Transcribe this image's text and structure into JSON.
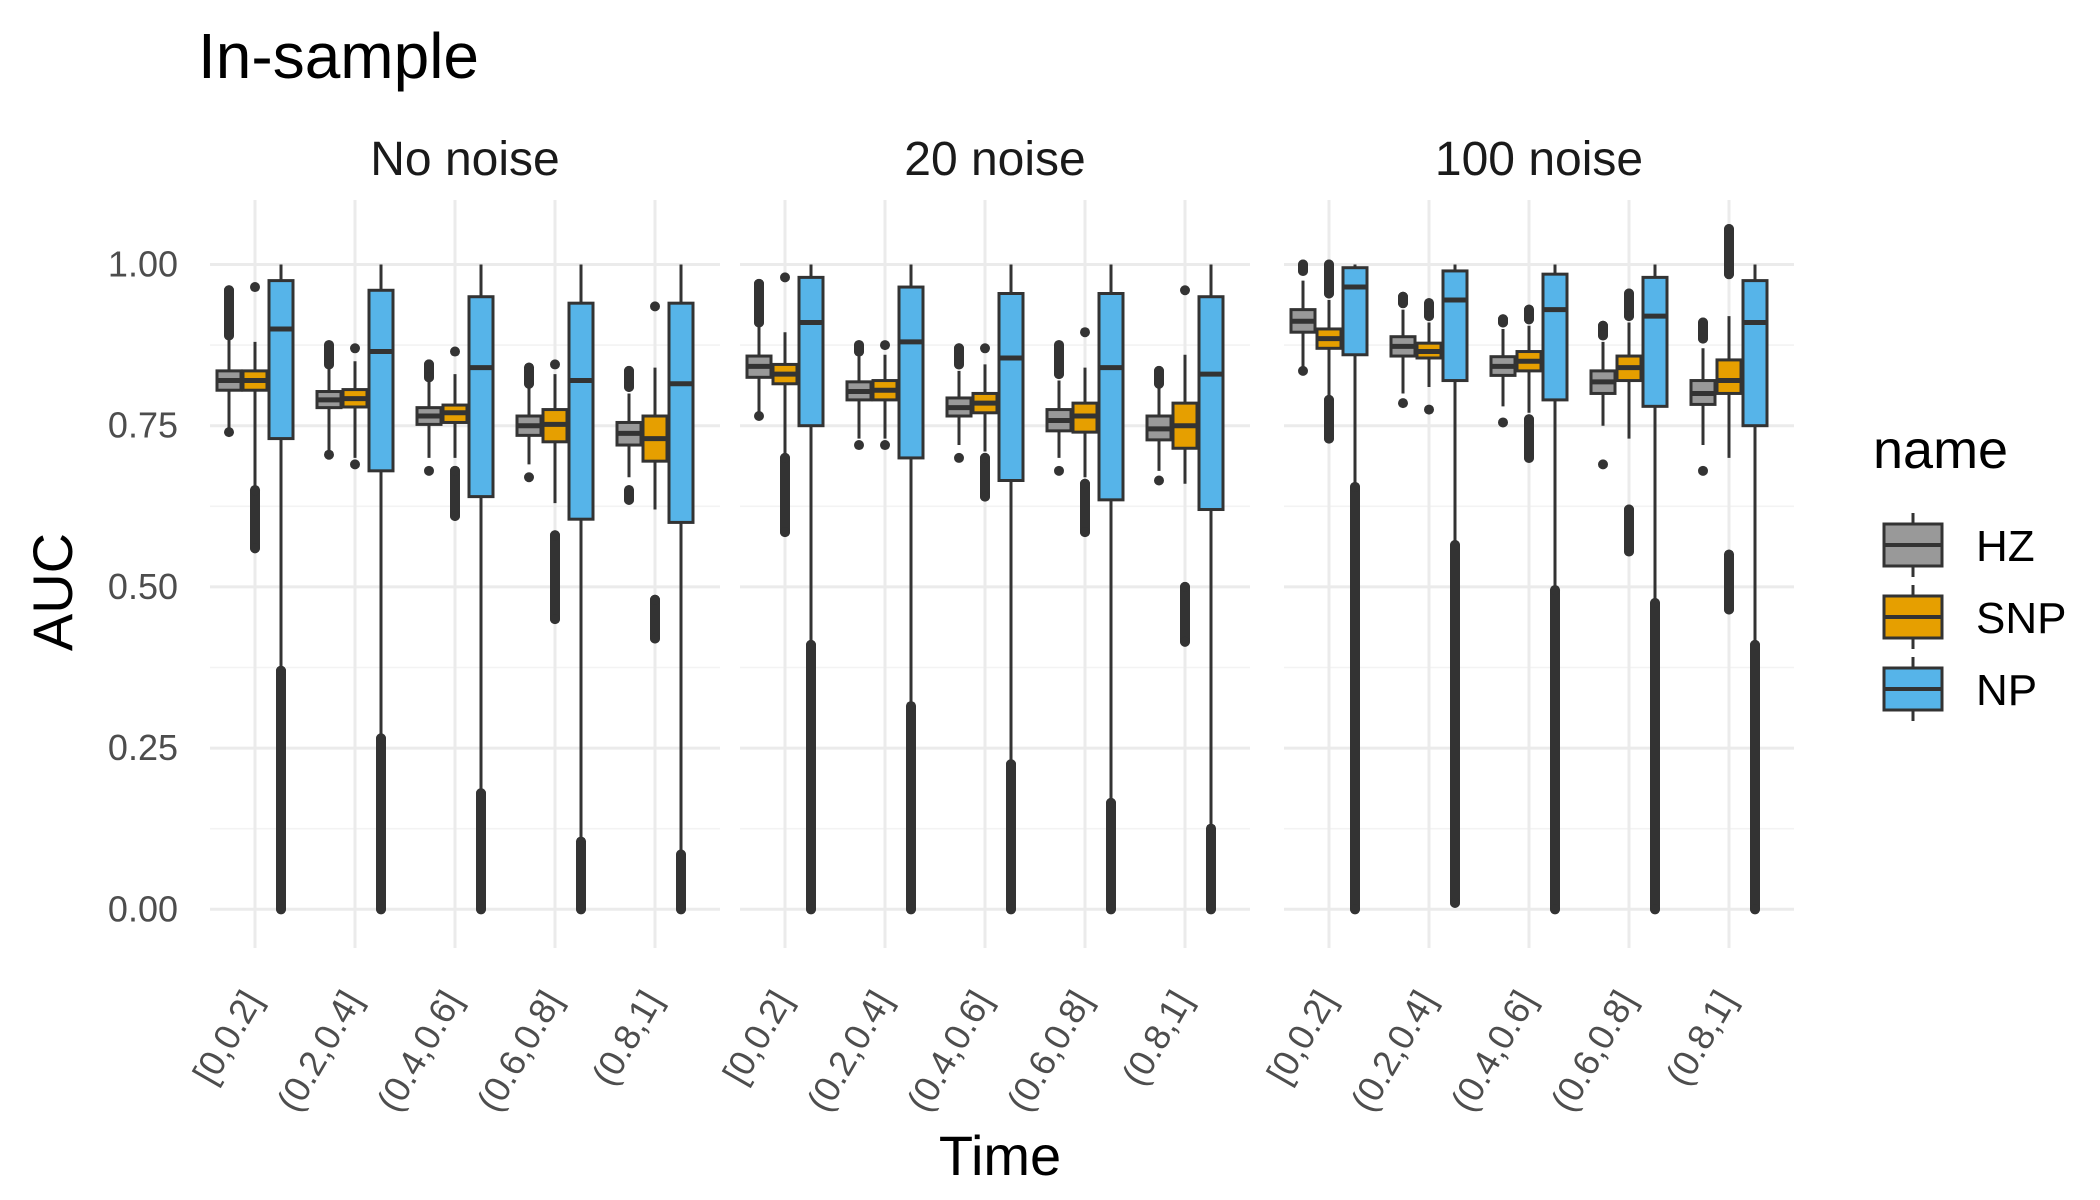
{
  "chart_data": {
    "type": "boxplot",
    "title": "In-sample",
    "xlabel": "Time",
    "ylabel": "AUC",
    "ylim": [
      -0.06,
      1.1
    ],
    "yticks": [
      "0.00",
      "0.25",
      "0.50",
      "0.75",
      "1.00"
    ],
    "ytick_values": [
      0,
      0.25,
      0.5,
      0.75,
      1.0
    ],
    "categories": [
      "[0,0.2]",
      "(0.2,0.4]",
      "(0.4,0.6]",
      "(0.6,0.8]",
      "(0.8,1]"
    ],
    "legend": {
      "title": "name",
      "position": "right",
      "entries": [
        {
          "label": "HZ",
          "color": "#999999"
        },
        {
          "label": "SNP",
          "color": "#E69F00"
        },
        {
          "label": "NP",
          "color": "#56B4E9"
        }
      ]
    },
    "grid": true,
    "panels": [
      {
        "label": "No noise",
        "series": {
          "HZ": [
            {
              "lo": 0.74,
              "q1": 0.805,
              "med": 0.82,
              "q3": 0.835,
              "hi": 0.885,
              "out_low": [
                0.74
              ],
              "out_high": [
                0.89,
                0.96
              ]
            },
            {
              "lo": 0.71,
              "q1": 0.778,
              "med": 0.79,
              "q3": 0.803,
              "hi": 0.84,
              "out_low": [
                0.705
              ],
              "out_high": [
                0.845,
                0.875
              ]
            },
            {
              "lo": 0.7,
              "q1": 0.752,
              "med": 0.765,
              "q3": 0.778,
              "hi": 0.82,
              "out_low": [
                0.68
              ],
              "out_high": [
                0.825,
                0.845
              ]
            },
            {
              "lo": 0.69,
              "q1": 0.735,
              "med": 0.75,
              "q3": 0.765,
              "hi": 0.81,
              "out_low": [
                0.67
              ],
              "out_high": [
                0.815,
                0.84
              ]
            },
            {
              "lo": 0.67,
              "q1": 0.72,
              "med": 0.738,
              "q3": 0.755,
              "hi": 0.8,
              "out_low": [
                0.65,
                0.635
              ],
              "out_high": [
                0.81,
                0.835
              ]
            }
          ],
          "SNP": [
            {
              "lo": 0.65,
              "q1": 0.805,
              "med": 0.82,
              "q3": 0.835,
              "hi": 0.88,
              "out_low": [
                0.56,
                0.65
              ],
              "out_high": [
                0.965
              ]
            },
            {
              "lo": 0.7,
              "q1": 0.779,
              "med": 0.792,
              "q3": 0.806,
              "hi": 0.85,
              "out_low": [
                0.69
              ],
              "out_high": [
                0.87
              ]
            },
            {
              "lo": 0.7,
              "q1": 0.755,
              "med": 0.77,
              "q3": 0.782,
              "hi": 0.83,
              "out_low": [
                0.61,
                0.68
              ],
              "out_high": [
                0.865
              ]
            },
            {
              "lo": 0.63,
              "q1": 0.725,
              "med": 0.752,
              "q3": 0.775,
              "hi": 0.83,
              "out_low": [
                0.45,
                0.58
              ],
              "out_high": [
                0.845
              ]
            },
            {
              "lo": 0.62,
              "q1": 0.695,
              "med": 0.73,
              "q3": 0.765,
              "hi": 0.84,
              "out_low": [
                0.42,
                0.48
              ],
              "out_high": [
                0.935
              ]
            }
          ],
          "NP": [
            {
              "lo": 0.37,
              "q1": 0.73,
              "med": 0.9,
              "q3": 0.975,
              "hi": 1.0,
              "out_low": [
                0.0,
                0.37
              ],
              "out_high": []
            },
            {
              "lo": 0.265,
              "q1": 0.68,
              "med": 0.865,
              "q3": 0.96,
              "hi": 1.0,
              "out_low": [
                0.0,
                0.265
              ],
              "out_high": []
            },
            {
              "lo": 0.18,
              "q1": 0.64,
              "med": 0.84,
              "q3": 0.95,
              "hi": 1.0,
              "out_low": [
                0.0,
                0.18
              ],
              "out_high": []
            },
            {
              "lo": 0.105,
              "q1": 0.605,
              "med": 0.82,
              "q3": 0.94,
              "hi": 1.0,
              "out_low": [
                0.0,
                0.105
              ],
              "out_high": []
            },
            {
              "lo": 0.085,
              "q1": 0.6,
              "med": 0.815,
              "q3": 0.94,
              "hi": 1.0,
              "out_low": [
                0.0,
                0.085
              ],
              "out_high": []
            }
          ]
        }
      },
      {
        "label": "20 noise",
        "series": {
          "HZ": [
            {
              "lo": 0.77,
              "q1": 0.825,
              "med": 0.842,
              "q3": 0.858,
              "hi": 0.905,
              "out_low": [
                0.765
              ],
              "out_high": [
                0.91,
                0.97
              ]
            },
            {
              "lo": 0.73,
              "q1": 0.79,
              "med": 0.803,
              "q3": 0.818,
              "hi": 0.86,
              "out_low": [
                0.72
              ],
              "out_high": [
                0.865,
                0.875
              ]
            },
            {
              "lo": 0.72,
              "q1": 0.765,
              "med": 0.778,
              "q3": 0.793,
              "hi": 0.835,
              "out_low": [
                0.7
              ],
              "out_high": [
                0.845,
                0.87
              ]
            },
            {
              "lo": 0.7,
              "q1": 0.742,
              "med": 0.758,
              "q3": 0.775,
              "hi": 0.82,
              "out_low": [
                0.68
              ],
              "out_high": [
                0.83,
                0.875
              ]
            },
            {
              "lo": 0.68,
              "q1": 0.728,
              "med": 0.745,
              "q3": 0.765,
              "hi": 0.81,
              "out_low": [
                0.665
              ],
              "out_high": [
                0.815,
                0.835
              ]
            }
          ],
          "SNP": [
            {
              "lo": 0.7,
              "q1": 0.815,
              "med": 0.83,
              "q3": 0.845,
              "hi": 0.895,
              "out_low": [
                0.585,
                0.7
              ],
              "out_high": [
                0.98
              ]
            },
            {
              "lo": 0.73,
              "q1": 0.79,
              "med": 0.805,
              "q3": 0.82,
              "hi": 0.86,
              "out_low": [
                0.72
              ],
              "out_high": [
                0.875
              ]
            },
            {
              "lo": 0.71,
              "q1": 0.77,
              "med": 0.785,
              "q3": 0.8,
              "hi": 0.845,
              "out_low": [
                0.64,
                0.7
              ],
              "out_high": [
                0.87
              ]
            },
            {
              "lo": 0.67,
              "q1": 0.74,
              "med": 0.765,
              "q3": 0.785,
              "hi": 0.84,
              "out_low": [
                0.585,
                0.66
              ],
              "out_high": [
                0.895
              ]
            },
            {
              "lo": 0.66,
              "q1": 0.715,
              "med": 0.75,
              "q3": 0.785,
              "hi": 0.86,
              "out_low": [
                0.415,
                0.5
              ],
              "out_high": [
                0.96
              ]
            }
          ],
          "NP": [
            {
              "lo": 0.41,
              "q1": 0.75,
              "med": 0.91,
              "q3": 0.98,
              "hi": 1.0,
              "out_low": [
                0.0,
                0.41
              ],
              "out_high": []
            },
            {
              "lo": 0.315,
              "q1": 0.7,
              "med": 0.88,
              "q3": 0.965,
              "hi": 1.0,
              "out_low": [
                0.0,
                0.315
              ],
              "out_high": []
            },
            {
              "lo": 0.225,
              "q1": 0.665,
              "med": 0.855,
              "q3": 0.955,
              "hi": 1.0,
              "out_low": [
                0.0,
                0.225
              ],
              "out_high": []
            },
            {
              "lo": 0.165,
              "q1": 0.635,
              "med": 0.84,
              "q3": 0.955,
              "hi": 1.0,
              "out_low": [
                0.0,
                0.165
              ],
              "out_high": []
            },
            {
              "lo": 0.125,
              "q1": 0.62,
              "med": 0.83,
              "q3": 0.95,
              "hi": 1.0,
              "out_low": [
                0.0,
                0.125
              ],
              "out_high": []
            }
          ]
        }
      },
      {
        "label": "100 noise",
        "series": {
          "HZ": [
            {
              "lo": 0.84,
              "q1": 0.895,
              "med": 0.912,
              "q3": 0.93,
              "hi": 0.975,
              "out_low": [
                0.835
              ],
              "out_high": [
                0.99,
                1.0
              ]
            },
            {
              "lo": 0.8,
              "q1": 0.858,
              "med": 0.873,
              "q3": 0.888,
              "hi": 0.93,
              "out_low": [
                0.785
              ],
              "out_high": [
                0.94,
                0.95
              ]
            },
            {
              "lo": 0.78,
              "q1": 0.828,
              "med": 0.842,
              "q3": 0.857,
              "hi": 0.9,
              "out_low": [
                0.755
              ],
              "out_high": [
                0.91,
                0.915
              ]
            },
            {
              "lo": 0.75,
              "q1": 0.8,
              "med": 0.818,
              "q3": 0.835,
              "hi": 0.88,
              "out_low": [
                0.69
              ],
              "out_high": [
                0.89,
                0.905
              ]
            },
            {
              "lo": 0.72,
              "q1": 0.783,
              "med": 0.8,
              "q3": 0.82,
              "hi": 0.87,
              "out_low": [
                0.68
              ],
              "out_high": [
                0.885,
                0.91
              ]
            }
          ],
          "SNP": [
            {
              "lo": 0.79,
              "q1": 0.87,
              "med": 0.885,
              "q3": 0.9,
              "hi": 0.945,
              "out_low": [
                0.73,
                0.79
              ],
              "out_high": [
                0.955,
                1.0
              ]
            },
            {
              "lo": 0.81,
              "q1": 0.855,
              "med": 0.865,
              "q3": 0.878,
              "hi": 0.91,
              "out_low": [
                0.775
              ],
              "out_high": [
                0.92,
                0.94
              ]
            },
            {
              "lo": 0.77,
              "q1": 0.835,
              "med": 0.85,
              "q3": 0.865,
              "hi": 0.905,
              "out_low": [
                0.7,
                0.76
              ],
              "out_high": [
                0.915,
                0.93
              ]
            },
            {
              "lo": 0.73,
              "q1": 0.82,
              "med": 0.84,
              "q3": 0.858,
              "hi": 0.91,
              "out_low": [
                0.555,
                0.62
              ],
              "out_high": [
                0.92,
                0.955
              ]
            },
            {
              "lo": 0.7,
              "q1": 0.8,
              "med": 0.82,
              "q3": 0.852,
              "hi": 0.92,
              "out_low": [
                0.465,
                0.55
              ],
              "out_high": [
                0.985,
                1.055
              ]
            }
          ],
          "NP": [
            {
              "lo": 0.655,
              "q1": 0.86,
              "med": 0.965,
              "q3": 0.995,
              "hi": 1.0,
              "out_low": [
                0.0,
                0.655
              ],
              "out_high": []
            },
            {
              "lo": 0.565,
              "q1": 0.82,
              "med": 0.945,
              "q3": 0.99,
              "hi": 1.0,
              "out_low": [
                0.01,
                0.565
              ],
              "out_high": []
            },
            {
              "lo": 0.495,
              "q1": 0.79,
              "med": 0.93,
              "q3": 0.985,
              "hi": 1.0,
              "out_low": [
                0.0,
                0.495
              ],
              "out_high": []
            },
            {
              "lo": 0.475,
              "q1": 0.78,
              "med": 0.92,
              "q3": 0.98,
              "hi": 1.0,
              "out_low": [
                0.0,
                0.475
              ],
              "out_high": []
            },
            {
              "lo": 0.41,
              "q1": 0.75,
              "med": 0.91,
              "q3": 0.975,
              "hi": 1.0,
              "out_low": [
                0.0,
                0.41
              ],
              "out_high": []
            }
          ]
        }
      }
    ]
  }
}
